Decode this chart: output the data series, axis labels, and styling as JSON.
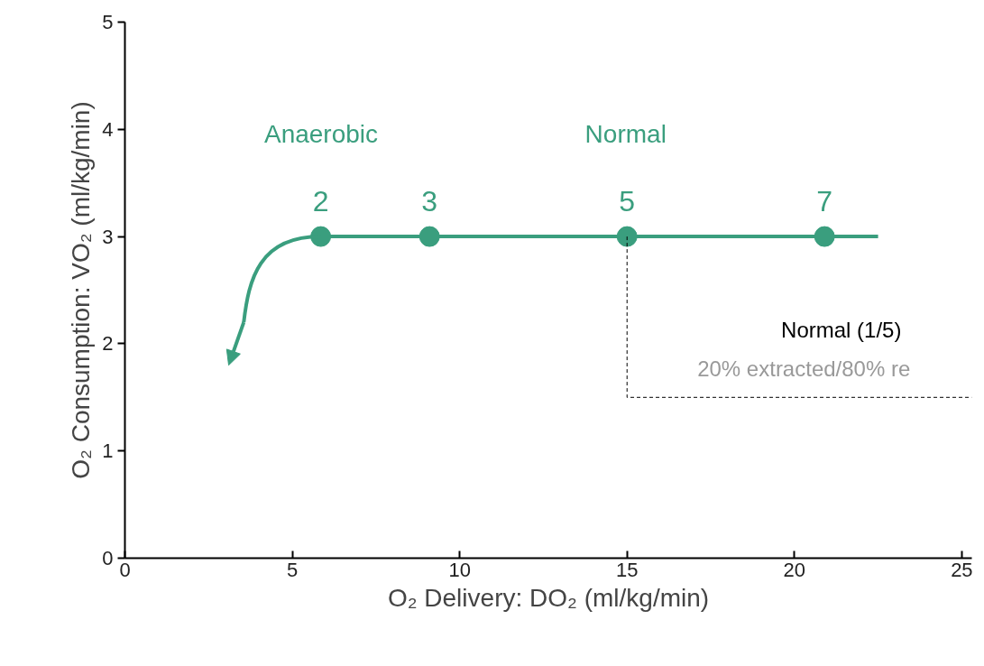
{
  "chart_data": {
    "type": "line",
    "xlabel": "O₂ Delivery: DO₂ (ml/kg/min)",
    "ylabel": "O₂ Consumption: VO₂ (ml/kg/min)",
    "xlim": [
      0,
      25.3
    ],
    "ylim": [
      0,
      5
    ],
    "xticks": [
      0,
      5,
      10,
      15,
      20,
      25
    ],
    "yticks": [
      0,
      1,
      2,
      3,
      4,
      5
    ],
    "grid": false,
    "series": [
      {
        "color": "#3a9e7e",
        "x": [
          5.85,
          22.5
        ],
        "values": [
          3,
          3
        ],
        "marker": "none",
        "line_style": "solid"
      },
      {
        "type": "scatter",
        "color": "#3a9e7e",
        "x": [
          5.85,
          9.1,
          15,
          20.9
        ],
        "values": [
          3,
          3,
          3,
          3
        ],
        "marker": "circle"
      },
      {
        "color": "#000000",
        "x": [
          15,
          15,
          25.3
        ],
        "values": [
          3,
          1.5,
          1.5
        ],
        "marker": "none",
        "line_style": "dashed"
      }
    ],
    "annotations": [
      "Anaerobic",
      "Normal",
      "Normal (1/5)",
      "20% extracted/80% re",
      {
        "text": "2",
        "x": 5.85,
        "y": 3
      },
      {
        "text": "3",
        "x": 9.1,
        "y": 3
      },
      {
        "text": "5",
        "x": 15,
        "y": 3
      },
      {
        "text": "7",
        "x": 20.9,
        "y": 3
      }
    ]
  }
}
